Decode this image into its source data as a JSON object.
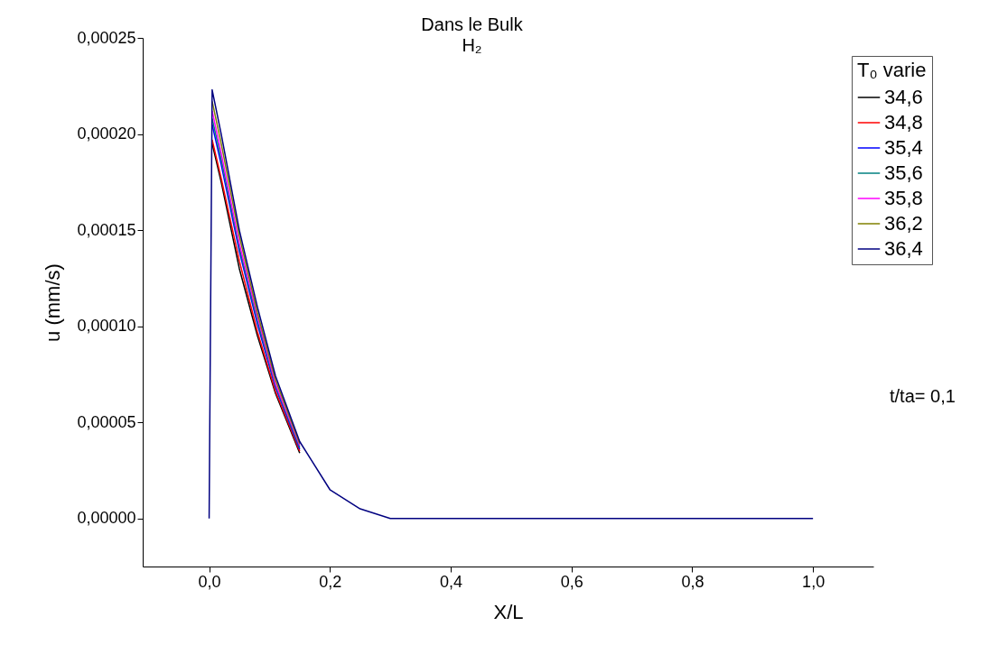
{
  "chart_data": {
    "type": "line",
    "title": "Dans le Bulk",
    "subtitle": "H₂",
    "xlabel": "X/L",
    "ylabel": "u (mm/s)",
    "legend_title": "T₀ varie",
    "annotations": [
      "t/ta= 0,1"
    ],
    "x": [
      0,
      0.005,
      0.02,
      0.05,
      0.08,
      0.11,
      0.15,
      0.2,
      0.25,
      0.3,
      0.35,
      0.4,
      0.6,
      0.8,
      1.0
    ],
    "series": [
      {
        "name": "34,6",
        "color": "#000000",
        "values": [
          null,
          0.000195,
          0.000175,
          0.00013,
          9.5e-05,
          6.5e-05,
          3.4e-05,
          null,
          null,
          null,
          null,
          null,
          null,
          null,
          null
        ]
      },
      {
        "name": "34,8",
        "color": "#ff0000",
        "values": [
          null,
          0.000197,
          0.000177,
          0.000134,
          9.7e-05,
          6.6e-05,
          3.5e-05,
          null,
          null,
          null,
          null,
          null,
          null,
          null,
          null
        ]
      },
      {
        "name": "35,4",
        "color": "#0000ff",
        "values": [
          null,
          0.000205,
          0.000184,
          0.000139,
          0.000101,
          6.8e-05,
          3.6e-05,
          null,
          null,
          null,
          null,
          null,
          null,
          null,
          null
        ]
      },
      {
        "name": "35,6",
        "color": "#008080",
        "values": [
          null,
          0.000208,
          0.000187,
          0.000141,
          0.000103,
          6.9e-05,
          3.7e-05,
          null,
          null,
          null,
          null,
          null,
          null,
          null,
          null
        ]
      },
      {
        "name": "35,8",
        "color": "#ff00ff",
        "values": [
          null,
          0.000212,
          0.00019,
          0.000143,
          0.000105,
          7e-05,
          3.8e-05,
          null,
          null,
          null,
          null,
          null,
          null,
          null,
          null
        ]
      },
      {
        "name": "36,2",
        "color": "#808000",
        "values": [
          null,
          0.000217,
          0.000195,
          0.000147,
          0.000107,
          7.2e-05,
          3.9e-05,
          null,
          null,
          null,
          null,
          null,
          null,
          null,
          null
        ]
      },
      {
        "name": "36,4",
        "color": "#000080",
        "values": [
          0,
          0.000223,
          0.0002,
          0.00015,
          0.00011,
          7.4e-05,
          4e-05,
          1.5e-05,
          5e-06,
          0,
          0,
          0,
          0,
          0,
          0
        ]
      }
    ],
    "xlim": [
      -0.11,
      1.1
    ],
    "xticks": [
      {
        "value": 0,
        "label": "0,0"
      },
      {
        "value": 0.2,
        "label": "0,2"
      },
      {
        "value": 0.4,
        "label": "0,4"
      },
      {
        "value": 0.6,
        "label": "0,6"
      },
      {
        "value": 0.8,
        "label": "0,8"
      },
      {
        "value": 1,
        "label": "1,0"
      }
    ],
    "ylim": [
      -2.5e-05,
      0.00025
    ],
    "yticks": [
      {
        "value": 0,
        "label": "0,00000"
      },
      {
        "value": 5e-05,
        "label": "0,00005"
      },
      {
        "value": 0.0001,
        "label": "0,00010"
      },
      {
        "value": 0.00015,
        "label": "0,00015"
      },
      {
        "value": 0.0002,
        "label": "0,00020"
      },
      {
        "value": 0.00025,
        "label": "0,00025"
      }
    ],
    "grid": false,
    "legend": "top right"
  }
}
